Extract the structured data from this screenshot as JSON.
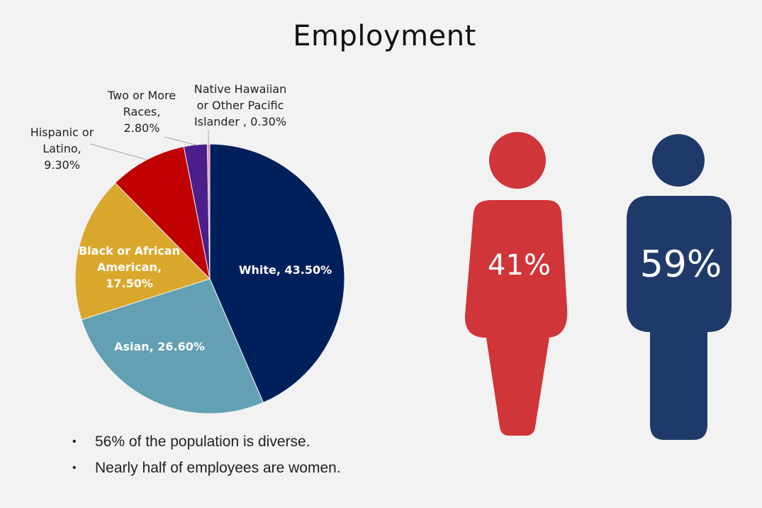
{
  "title": "Employment",
  "chart_data": {
    "type": "pie",
    "slices": [
      {
        "label": "White",
        "value": 43.5,
        "display": "43.50%",
        "color": "#00205b"
      },
      {
        "label": "Asian",
        "value": 26.6,
        "display": "26.60%",
        "color": "#64a0b4"
      },
      {
        "label": "Black or African American",
        "value": 17.5,
        "display": "17.50%",
        "color": "#daa82c"
      },
      {
        "label": "Hispanic or Latino",
        "value": 9.3,
        "display": "9.30%",
        "color": "#c00000"
      },
      {
        "label": "Two or More Races",
        "value": 2.8,
        "display": "2.80%",
        "color": "#4b1e8c"
      },
      {
        "label": "Native Hawaiian or Other Pacific Islander",
        "value": 0.3,
        "display": "0.30%",
        "color": "#e88fb4"
      }
    ],
    "labels_text": {
      "white": [
        "White, 43.50%"
      ],
      "asian": [
        "Asian, 26.60%"
      ],
      "black": [
        "Black or African",
        "American,",
        "17.50%"
      ],
      "hispanic": [
        "Hispanic or",
        "Latino,",
        "9.30%"
      ],
      "two": [
        "Two or More",
        "Races,",
        "2.80%"
      ],
      "native": [
        "Native Hawaiian",
        "or Other Pacific",
        "Islander , 0.30%"
      ]
    }
  },
  "bullets": [
    "56% of the population is diverse.",
    "Nearly half of employees are women."
  ],
  "gender": {
    "female": {
      "value": 41,
      "label": "41%",
      "color": "#d03539",
      "icon": "woman-figure-icon"
    },
    "male": {
      "value": 59,
      "label": "59%",
      "color": "#1f3a6a",
      "icon": "man-figure-icon"
    }
  }
}
